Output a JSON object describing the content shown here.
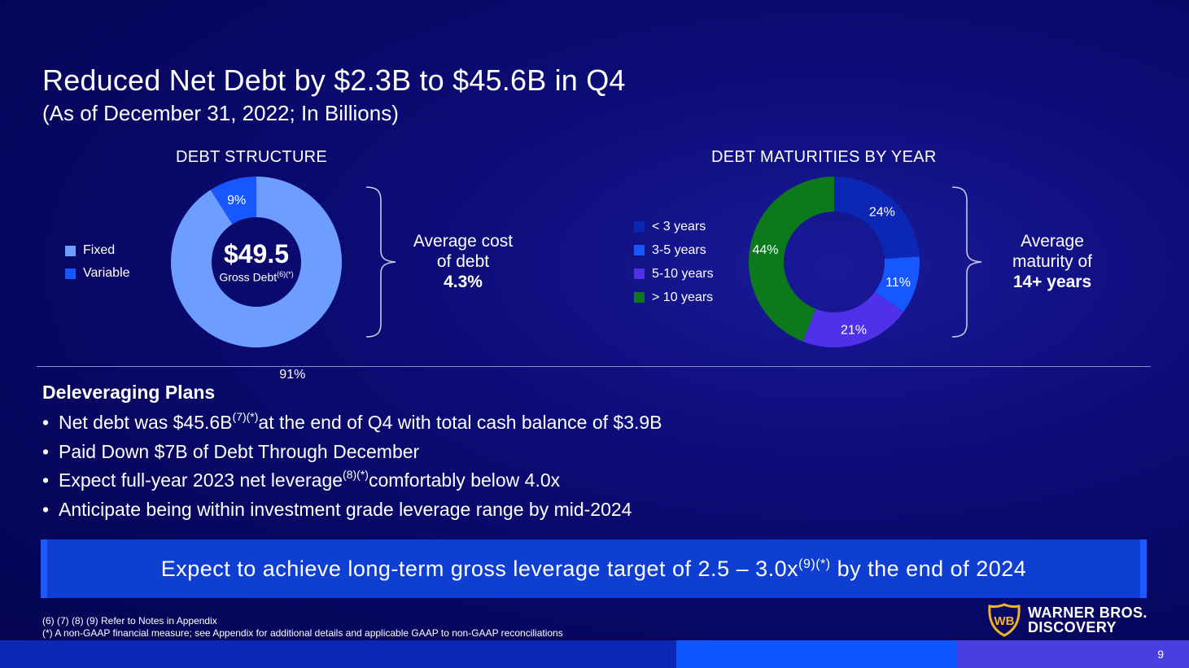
{
  "slide": {
    "title": "Reduced Net Debt by $2.3B to $45.6B in Q4",
    "subtitle": "(As of December 31, 2022; In Billions)",
    "page_number": "9"
  },
  "debt_structure": {
    "heading": "DEBT STRUCTURE",
    "legend": [
      {
        "label": "Fixed",
        "color": "#6d9dff"
      },
      {
        "label": "Variable",
        "color": "#1757ff"
      }
    ],
    "center_value": "$49.5",
    "center_label": "Gross Debt",
    "center_sup": "(6)(*)",
    "callout_line1": "Average cost",
    "callout_line2": "of debt",
    "callout_value": "4.3%"
  },
  "debt_maturities": {
    "heading": "DEBT MATURITIES BY YEAR",
    "legend": [
      {
        "label": "< 3 years",
        "color": "#0c27b4"
      },
      {
        "label": "3-5 years",
        "color": "#1757ff"
      },
      {
        "label": "5-10 years",
        "color": "#5030e8"
      },
      {
        "label": "> 10 years",
        "color": "#0c7a1c"
      }
    ],
    "callout_line1": "Average",
    "callout_line2": "maturity of",
    "callout_value": "14+ years"
  },
  "chart_data": [
    {
      "type": "pie",
      "title": "DEBT STRUCTURE",
      "categories": [
        "Fixed",
        "Variable"
      ],
      "values": [
        91,
        9
      ],
      "labels": [
        "91%",
        "9%"
      ],
      "colors": [
        "#6d9dff",
        "#1757ff"
      ],
      "legend": "left"
    },
    {
      "type": "pie",
      "title": "DEBT MATURITIES BY YEAR",
      "categories": [
        "< 3 years",
        "3-5 years",
        "5-10 years",
        "> 10 years"
      ],
      "values": [
        24,
        11,
        21,
        44
      ],
      "labels": [
        "24%",
        "11%",
        "21%",
        "44%"
      ],
      "colors": [
        "#0c27b4",
        "#1757ff",
        "#5030e8",
        "#0c7a1c"
      ],
      "legend": "left"
    }
  ],
  "deleveraging": {
    "heading": "Deleveraging Plans",
    "bullets": [
      {
        "pre": "Net debt was $45.6B",
        "sup": "(7)(*)",
        "post": " at the end of Q4 with total cash balance of $3.9B"
      },
      {
        "pre": "Paid Down $7B of Debt Through December",
        "sup": "",
        "post": ""
      },
      {
        "pre": "Expect full-year 2023 net leverage",
        "sup": "(8)(*)",
        "post": " comfortably below 4.0x"
      },
      {
        "pre": "Anticipate being within investment grade leverage range by mid-2024",
        "sup": "",
        "post": ""
      }
    ]
  },
  "banner": {
    "pre": "Expect to achieve long-term gross leverage target of 2.5 – 3.0x",
    "sup": "(9)(*)",
    "post": " by the end of 2024"
  },
  "footnotes": {
    "line1": "(6) (7) (8) (9) Refer to Notes in Appendix",
    "line2": "(*) A non-GAAP financial measure; see Appendix for additional details and applicable GAAP to non-GAAP reconciliations"
  },
  "logo": {
    "line1": "WARNER BROS.",
    "line2": "DISCOVERY",
    "emblem_text": "WB",
    "color": "#f0b429"
  }
}
